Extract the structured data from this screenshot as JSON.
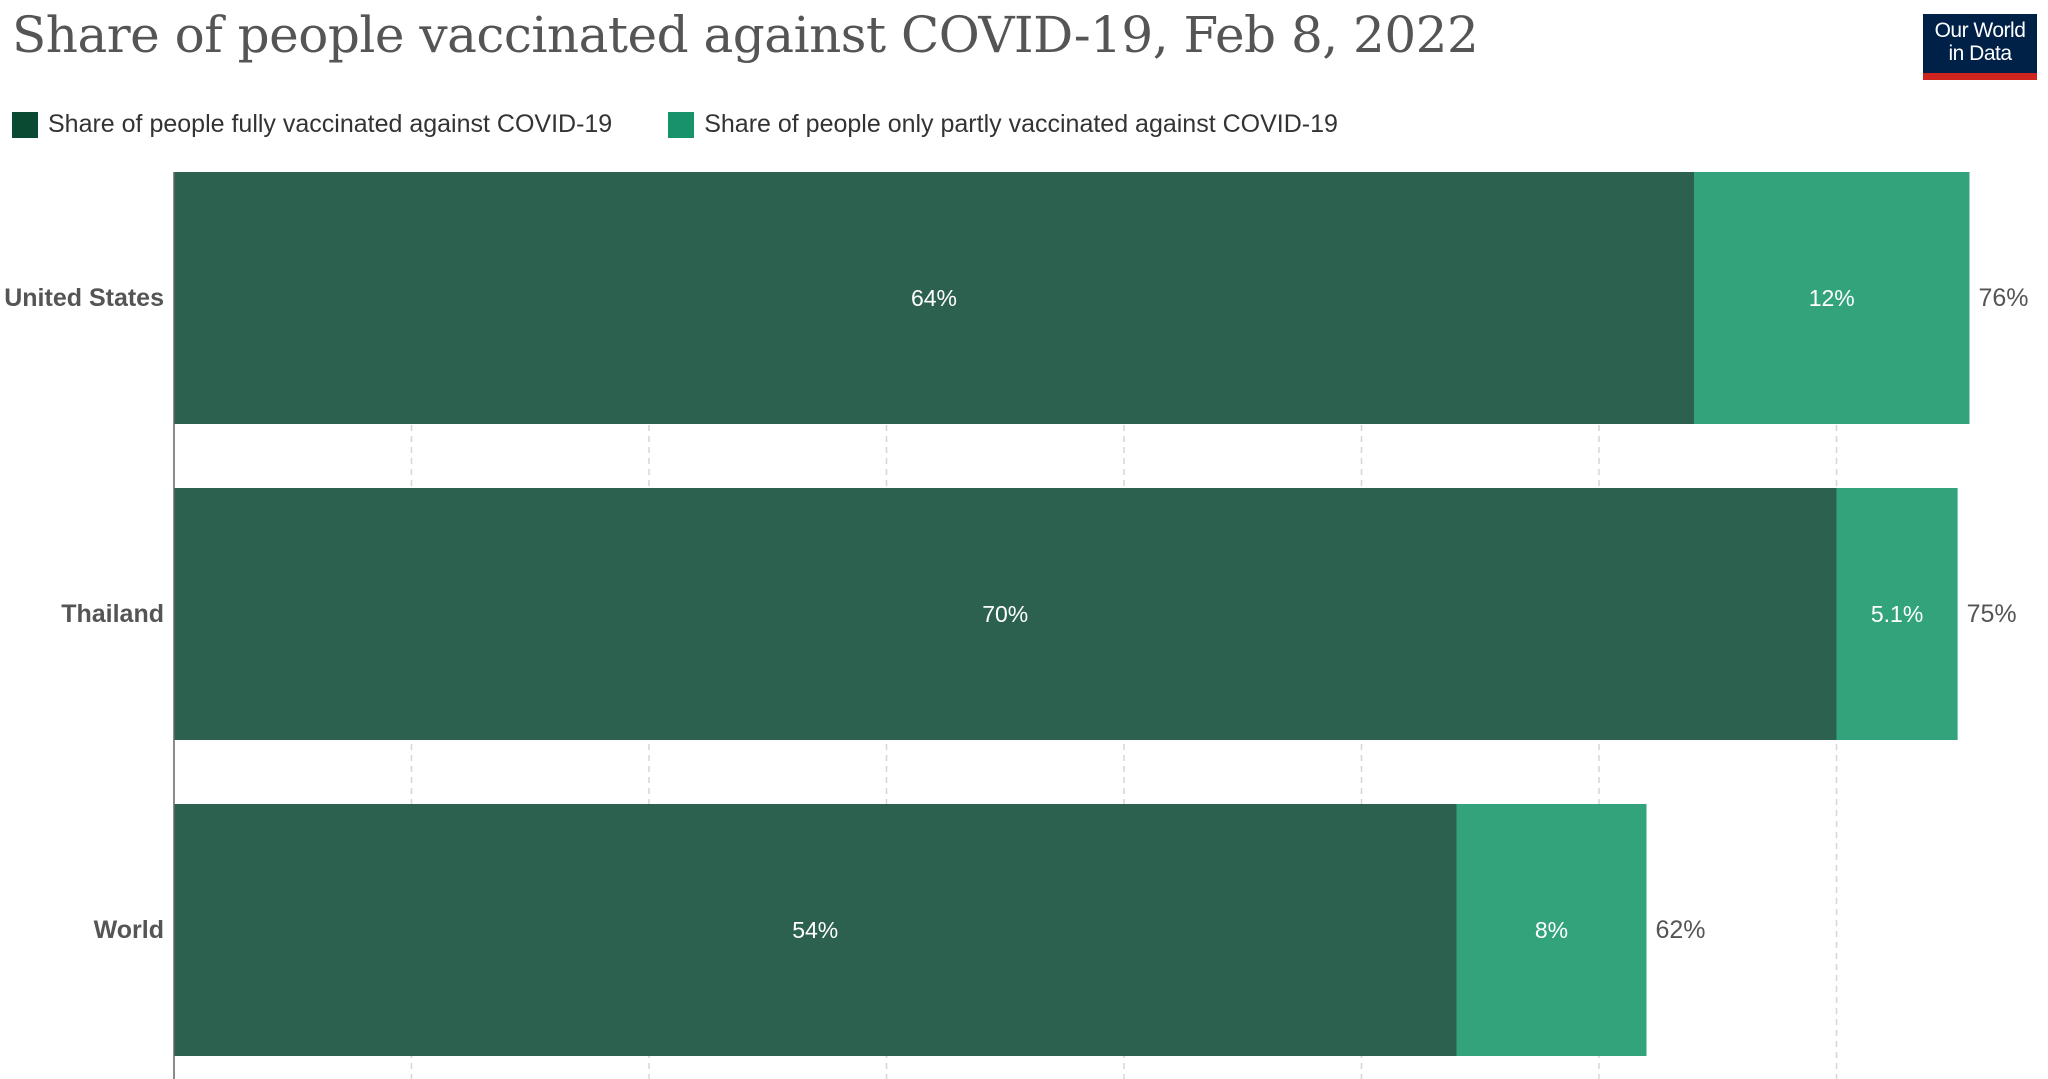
{
  "header": {
    "title": "Share of people vaccinated against COVID-19, Feb 8, 2022",
    "logo_line1": "Our World",
    "logo_line2": "in Data"
  },
  "colors": {
    "fully": "#2c6150",
    "partly": "#33a37c",
    "legend_fully": "#0a4a32",
    "legend_partly": "#16936b",
    "grid": "#d6d6d6",
    "axis": "#666666",
    "text": "#555555"
  },
  "chart_data": {
    "type": "bar",
    "orientation": "horizontal",
    "stacked": true,
    "title": "Share of people vaccinated against COVID-19, Feb 8, 2022",
    "categories": [
      "United States",
      "Thailand",
      "World"
    ],
    "series": [
      {
        "name": "Share of people fully vaccinated against COVID-19",
        "values": [
          64,
          70,
          54
        ],
        "labels": [
          "64%",
          "70%",
          "54%"
        ]
      },
      {
        "name": "Share of people only partly vaccinated against COVID-19",
        "values": [
          11.6,
          5.1,
          8
        ],
        "labels": [
          "12%",
          "5.1%",
          "8%"
        ]
      }
    ],
    "totals": [
      "76%",
      "75%",
      "62%"
    ],
    "xlim": [
      0,
      80
    ],
    "grid_step": 10,
    "grid": true,
    "legend_position": "top-left"
  }
}
